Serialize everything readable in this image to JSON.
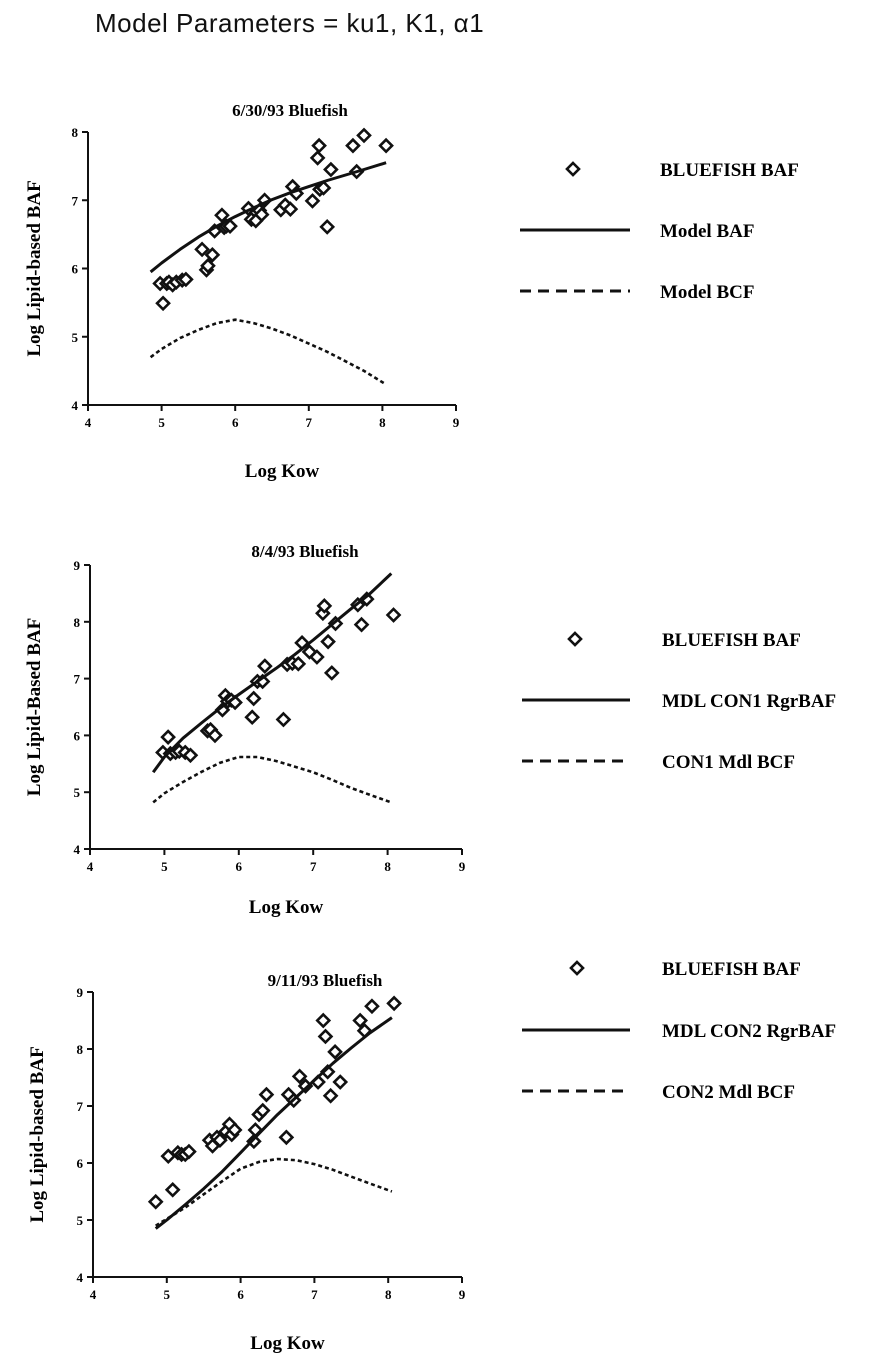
{
  "page": {
    "title": "Model Parameters = ku1, K1, α1"
  },
  "chart_data": [
    {
      "type": "scatter",
      "title": "6/30/93 Bluefish",
      "xlabel": "Log Kow",
      "ylabel": "Log Lipid-based BAF",
      "xlim": [
        4,
        9
      ],
      "ylim": [
        4,
        8
      ],
      "xticks": [
        "4",
        "5",
        "6",
        "7",
        "8",
        "9"
      ],
      "yticks": [
        "4",
        "5",
        "6",
        "7",
        "8"
      ],
      "legend_position": "right",
      "series": [
        {
          "name": "BLUEFISH BAF",
          "kind": "scatter",
          "marker": "diamond",
          "x": [
            4.98,
            5.02,
            5.07,
            5.1,
            5.15,
            5.2,
            5.28,
            5.33,
            5.55,
            5.61,
            5.63,
            5.69,
            5.72,
            5.82,
            5.85,
            5.88,
            5.93,
            6.18,
            6.22,
            6.28,
            6.33,
            6.36,
            6.4,
            6.62,
            6.68,
            6.75,
            6.78,
            6.83,
            7.05,
            7.12,
            7.14,
            7.15,
            7.2,
            7.25,
            7.3,
            7.6,
            7.65,
            7.75,
            8.05
          ],
          "y": [
            5.78,
            5.49,
            5.78,
            5.8,
            5.76,
            5.8,
            5.83,
            5.84,
            6.28,
            5.98,
            6.04,
            6.2,
            6.55,
            6.78,
            6.6,
            6.62,
            6.62,
            6.88,
            6.72,
            6.7,
            6.85,
            6.79,
            7.0,
            6.86,
            6.93,
            6.87,
            7.2,
            7.1,
            6.99,
            7.62,
            7.8,
            7.16,
            7.18,
            6.61,
            7.45,
            7.8,
            7.42,
            7.95,
            7.8
          ]
        },
        {
          "name": "Model BAF",
          "kind": "line",
          "style": "solid",
          "x": [
            4.85,
            5.0,
            5.25,
            5.5,
            5.75,
            6.0,
            6.25,
            6.5,
            6.75,
            7.0,
            7.25,
            7.5,
            7.75,
            8.05
          ],
          "y": [
            5.95,
            6.08,
            6.28,
            6.46,
            6.62,
            6.76,
            6.89,
            7.01,
            7.11,
            7.2,
            7.29,
            7.37,
            7.45,
            7.55
          ]
        },
        {
          "name": "Model BCF",
          "kind": "line",
          "style": "dashed",
          "x": [
            4.85,
            5.0,
            5.25,
            5.5,
            5.75,
            6.0,
            6.25,
            6.5,
            6.75,
            7.0,
            7.25,
            7.5,
            7.75,
            8.05
          ],
          "y": [
            4.7,
            4.82,
            4.98,
            5.1,
            5.2,
            5.25,
            5.2,
            5.12,
            5.02,
            4.9,
            4.78,
            4.64,
            4.5,
            4.3
          ]
        }
      ]
    },
    {
      "type": "scatter",
      "title": "8/4/93 Bluefish",
      "xlabel": "Log Kow",
      "ylabel": "Log Lipid-Based BAF",
      "xlim": [
        4,
        9
      ],
      "ylim": [
        4,
        9
      ],
      "xticks": [
        "4",
        "5",
        "6",
        "7",
        "8",
        "9"
      ],
      "yticks": [
        "4",
        "5",
        "6",
        "7",
        "8",
        "9"
      ],
      "legend_position": "right",
      "series": [
        {
          "name": "BLUEFISH BAF",
          "kind": "scatter",
          "marker": "diamond",
          "x": [
            4.98,
            5.05,
            5.08,
            5.15,
            5.2,
            5.28,
            5.35,
            5.58,
            5.62,
            5.68,
            5.78,
            5.82,
            5.85,
            5.9,
            5.95,
            6.18,
            6.2,
            6.25,
            6.32,
            6.35,
            6.6,
            6.65,
            6.72,
            6.8,
            6.85,
            6.95,
            7.05,
            7.13,
            7.15,
            7.2,
            7.25,
            7.3,
            7.6,
            7.65,
            7.72,
            8.08
          ],
          "y": [
            5.7,
            5.97,
            5.68,
            5.7,
            5.72,
            5.7,
            5.65,
            6.08,
            6.1,
            6.0,
            6.45,
            6.7,
            6.6,
            6.62,
            6.58,
            6.32,
            6.65,
            6.95,
            6.95,
            7.22,
            6.28,
            7.25,
            7.27,
            7.26,
            7.63,
            7.47,
            7.38,
            8.15,
            8.28,
            7.65,
            7.1,
            7.97,
            8.3,
            7.95,
            8.4,
            8.12
          ]
        },
        {
          "name": "MDL CON1 RgrBAF",
          "kind": "line",
          "style": "solid",
          "x": [
            4.85,
            5.0,
            5.25,
            5.5,
            5.75,
            6.0,
            6.25,
            6.5,
            6.75,
            7.0,
            7.25,
            7.5,
            7.75,
            8.05
          ],
          "y": [
            5.35,
            5.62,
            5.95,
            6.22,
            6.48,
            6.72,
            6.95,
            7.18,
            7.42,
            7.68,
            7.95,
            8.22,
            8.48,
            8.85
          ]
        },
        {
          "name": "CON1 Mdl BCF",
          "kind": "line",
          "style": "dashed",
          "x": [
            4.85,
            5.0,
            5.25,
            5.5,
            5.75,
            6.0,
            6.25,
            6.5,
            6.75,
            7.0,
            7.25,
            7.5,
            7.75,
            8.05
          ],
          "y": [
            4.82,
            4.98,
            5.18,
            5.36,
            5.52,
            5.62,
            5.62,
            5.55,
            5.45,
            5.35,
            5.22,
            5.08,
            4.96,
            4.82
          ]
        }
      ]
    },
    {
      "type": "scatter",
      "title": "9/11/93 Bluefish",
      "xlabel": "Log Kow",
      "ylabel": "Log Lipid-based BAF",
      "xlim": [
        4,
        9
      ],
      "ylim": [
        4,
        9
      ],
      "xticks": [
        "4",
        "5",
        "6",
        "7",
        "8",
        "9"
      ],
      "yticks": [
        "4",
        "5",
        "6",
        "7",
        "8",
        "9"
      ],
      "legend_position": "right",
      "series": [
        {
          "name": "BLUEFISH BAF",
          "kind": "scatter",
          "marker": "diamond",
          "x": [
            4.85,
            5.02,
            5.08,
            5.15,
            5.2,
            5.25,
            5.3,
            5.58,
            5.62,
            5.68,
            5.72,
            5.8,
            5.85,
            5.88,
            5.92,
            6.18,
            6.2,
            6.25,
            6.3,
            6.35,
            6.62,
            6.65,
            6.72,
            6.8,
            6.88,
            7.05,
            7.12,
            7.15,
            7.18,
            7.22,
            7.28,
            7.35,
            7.62,
            7.68,
            7.78,
            8.08
          ],
          "y": [
            5.32,
            6.12,
            5.53,
            6.18,
            6.15,
            6.15,
            6.2,
            6.4,
            6.3,
            6.45,
            6.4,
            6.55,
            6.68,
            6.5,
            6.58,
            6.38,
            6.58,
            6.85,
            6.92,
            7.2,
            6.45,
            7.2,
            7.1,
            7.52,
            7.35,
            7.42,
            8.5,
            8.22,
            7.6,
            7.18,
            7.95,
            7.42,
            8.5,
            8.32,
            8.75,
            8.8
          ]
        },
        {
          "name": "MDL CON2 RgrBAF",
          "kind": "line",
          "style": "solid",
          "x": [
            4.85,
            5.0,
            5.25,
            5.5,
            5.75,
            6.0,
            6.25,
            6.5,
            6.75,
            7.0,
            7.25,
            7.5,
            7.75,
            8.05
          ],
          "y": [
            4.85,
            5.0,
            5.27,
            5.55,
            5.85,
            6.18,
            6.52,
            6.85,
            7.15,
            7.45,
            7.75,
            8.02,
            8.28,
            8.55
          ]
        },
        {
          "name": "CON2 Mdl BCF",
          "kind": "line",
          "style": "dashed",
          "x": [
            4.85,
            5.0,
            5.25,
            5.5,
            5.75,
            6.0,
            6.25,
            6.5,
            6.75,
            7.0,
            7.25,
            7.5,
            7.75,
            8.05
          ],
          "y": [
            4.9,
            5.02,
            5.22,
            5.45,
            5.68,
            5.9,
            6.02,
            6.07,
            6.05,
            5.98,
            5.88,
            5.76,
            5.64,
            5.5
          ]
        }
      ]
    }
  ]
}
